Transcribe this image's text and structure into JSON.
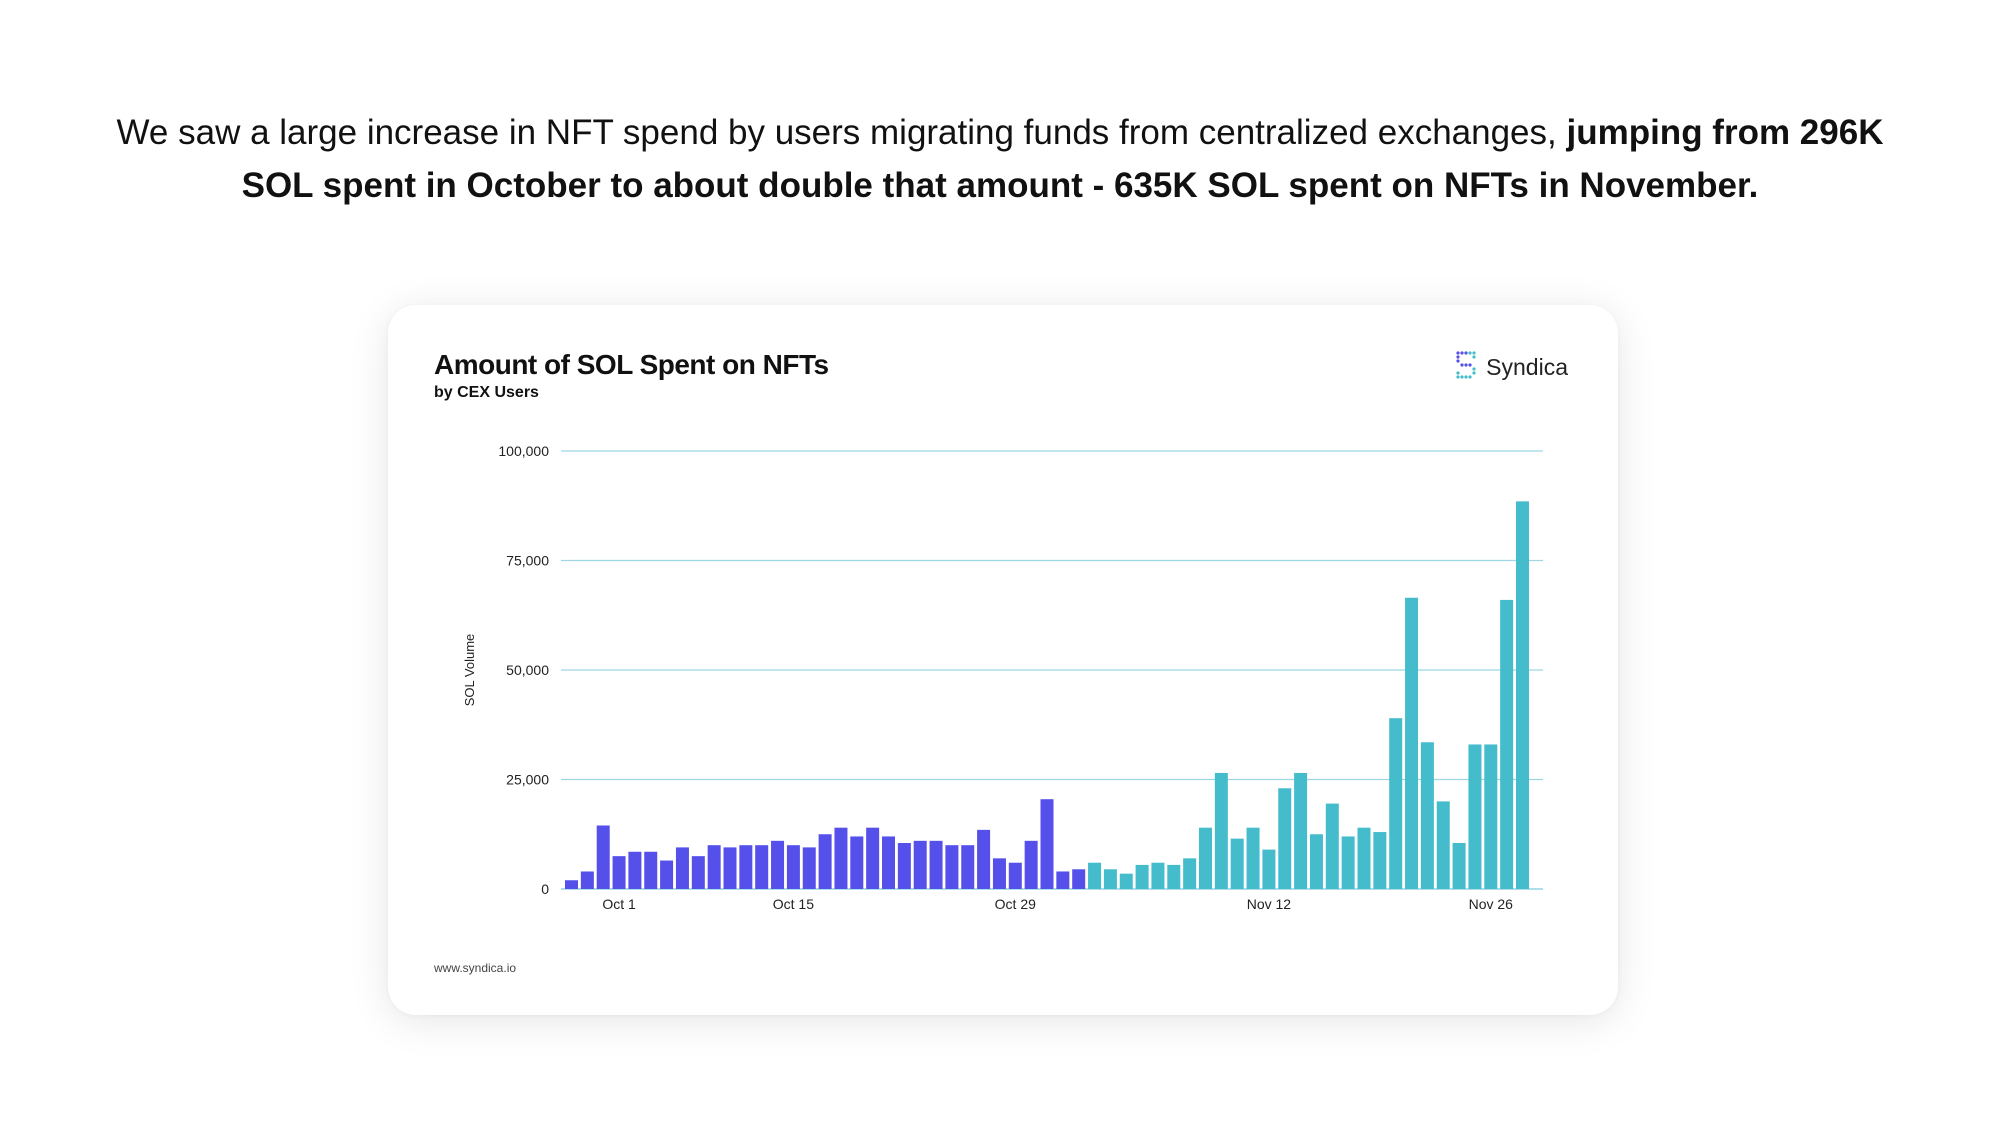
{
  "headline": {
    "normal": "We saw a large increase in NFT spend by users migrating funds from centralized exchanges, ",
    "bold": "jumping from 296K SOL spent in October to about double that amount - 635K SOL spent on NFTs in November."
  },
  "card": {
    "brand": "Syndica",
    "brand_icon": "syndica-logo-icon",
    "footer_url": "www.syndica.io"
  },
  "chart_data": {
    "type": "bar",
    "title": "Amount of SOL Spent on NFTs",
    "subtitle": "by CEX Users",
    "xlabel": "",
    "ylabel": "SOL Volume",
    "ylim": [
      0,
      100000
    ],
    "yticks": [
      0,
      25000,
      50000,
      75000,
      100000
    ],
    "ytick_labels": [
      "0",
      "25,000",
      "50,000",
      "75,000",
      "100,000"
    ],
    "xtick_labels": [
      {
        "label": "Oct 1",
        "index": 3
      },
      {
        "label": "Oct 15",
        "index": 14
      },
      {
        "label": "Oct 29",
        "index": 28
      },
      {
        "label": "Nov 12",
        "index": 44
      },
      {
        "label": "Nov 26",
        "index": 58
      }
    ],
    "grid": true,
    "colors": {
      "october": "#5550ea",
      "november": "#45bccb",
      "grid": "#9ed6e6",
      "axis": "#7fc9dd"
    },
    "series": [
      {
        "color_key": "october",
        "values": [
          2000,
          4000,
          14500,
          7500,
          8500,
          8500,
          6500,
          9500,
          7500,
          10000,
          9500,
          10000,
          10000,
          11000,
          10000,
          9500,
          12500,
          14000,
          12000,
          14000,
          12000,
          10500,
          11000,
          11000,
          10000,
          10000,
          13500,
          7000,
          6000,
          11000,
          20500,
          4000,
          4500
        ]
      },
      {
        "color_key": "november",
        "values": [
          6000,
          4500,
          3500,
          5500,
          6000,
          5500,
          7000,
          14000,
          26500,
          11500,
          14000,
          9000,
          23000,
          26500,
          12500,
          19500,
          12000,
          14000,
          13000,
          39000,
          66500,
          33500,
          20000,
          10500,
          33000,
          33000,
          66000,
          88500
        ]
      }
    ]
  }
}
